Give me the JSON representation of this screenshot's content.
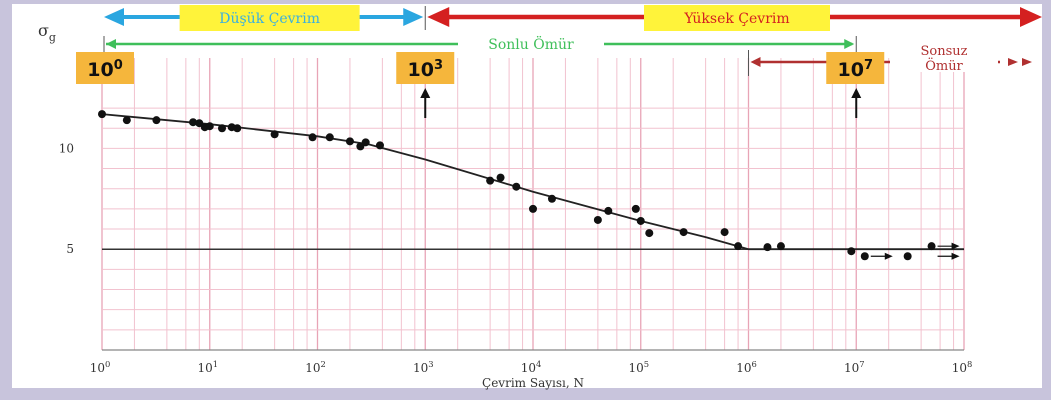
{
  "chart_data": {
    "type": "scatter",
    "xscale": "log",
    "xlim": [
      1,
      100000000
    ],
    "ylim": [
      0,
      12.5
    ],
    "xlabel": "Çevrim Sayısı, N",
    "ylabel": "σg",
    "x_ticks": [
      {
        "base": "10",
        "exp": "0"
      },
      {
        "base": "10",
        "exp": "1"
      },
      {
        "base": "10",
        "exp": "2"
      },
      {
        "base": "10",
        "exp": "3"
      },
      {
        "base": "10",
        "exp": "4"
      },
      {
        "base": "10",
        "exp": "5"
      },
      {
        "base": "10",
        "exp": "6"
      },
      {
        "base": "10",
        "exp": "7"
      },
      {
        "base": "10",
        "exp": "8"
      }
    ],
    "y_ticks": [
      {
        "value": 10,
        "label": "10"
      },
      {
        "value": 5,
        "label": "5"
      }
    ],
    "grid": true,
    "points": [
      {
        "x": 1,
        "y": 11.7
      },
      {
        "x": 1.7,
        "y": 11.4
      },
      {
        "x": 3.2,
        "y": 11.4
      },
      {
        "x": 7,
        "y": 11.3
      },
      {
        "x": 8,
        "y": 11.25
      },
      {
        "x": 9,
        "y": 11.05
      },
      {
        "x": 10,
        "y": 11.1
      },
      {
        "x": 13,
        "y": 11.0
      },
      {
        "x": 16,
        "y": 11.05
      },
      {
        "x": 18,
        "y": 11.0
      },
      {
        "x": 40,
        "y": 10.7
      },
      {
        "x": 90,
        "y": 10.55
      },
      {
        "x": 130,
        "y": 10.55
      },
      {
        "x": 200,
        "y": 10.35
      },
      {
        "x": 250,
        "y": 10.1
      },
      {
        "x": 280,
        "y": 10.3
      },
      {
        "x": 380,
        "y": 10.15
      },
      {
        "x": 4000,
        "y": 8.4
      },
      {
        "x": 5000,
        "y": 8.55
      },
      {
        "x": 7000,
        "y": 8.1
      },
      {
        "x": 10000,
        "y": 7.0
      },
      {
        "x": 15000,
        "y": 7.5
      },
      {
        "x": 40000,
        "y": 6.45
      },
      {
        "x": 50000,
        "y": 6.9
      },
      {
        "x": 90000,
        "y": 7.0
      },
      {
        "x": 100000,
        "y": 6.4
      },
      {
        "x": 120000,
        "y": 5.8
      },
      {
        "x": 250000,
        "y": 5.85
      },
      {
        "x": 600000,
        "y": 5.85
      },
      {
        "x": 800000,
        "y": 5.15
      },
      {
        "x": 1500000,
        "y": 5.1
      },
      {
        "x": 2000000,
        "y": 5.15
      },
      {
        "x": 9000000,
        "y": 4.9
      },
      {
        "x": 12000000,
        "y": 4.65
      },
      {
        "x": 30000000,
        "y": 4.65
      },
      {
        "x": 50000000,
        "y": 5.15
      }
    ],
    "runouts": [
      {
        "x": 12000000,
        "y": 4.65
      },
      {
        "x": 50000000,
        "y": 5.15
      },
      {
        "x": 50000000,
        "y": 4.65
      }
    ],
    "curve": [
      {
        "x": 1,
        "y": 11.7
      },
      {
        "x": 10,
        "y": 11.2
      },
      {
        "x": 100,
        "y": 10.6
      },
      {
        "x": 300,
        "y": 10.2
      },
      {
        "x": 1000,
        "y": 9.45
      },
      {
        "x": 10000,
        "y": 7.85
      },
      {
        "x": 100000,
        "y": 6.4
      },
      {
        "x": 400000,
        "y": 5.6
      },
      {
        "x": 1000000,
        "y": 5.0
      },
      {
        "x": 100000000,
        "y": 5.0
      }
    ],
    "regions": {
      "low_cycle": {
        "label": "Düşük Çevrim",
        "from": 1,
        "to": 1000,
        "color": "#2aa6e0"
      },
      "high_cycle": {
        "label": "Yüksek Çevrim",
        "from": 1000,
        "to": 100000000,
        "color": "#d42020"
      },
      "finite_life": {
        "label": "Sonlu Ömür",
        "from": 1,
        "to": 10000000,
        "color": "#3fbf5a"
      },
      "infinite_life": {
        "label_line1": "Sonsuz",
        "label_line2": "Ömür",
        "from": 1000000,
        "to": 100000000,
        "color": "#b03030"
      }
    },
    "markers": [
      {
        "x": 1,
        "base": "10",
        "exp": "0",
        "arrow": false
      },
      {
        "x": 1000,
        "base": "10",
        "exp": "3",
        "arrow": true
      },
      {
        "x": 10000000,
        "base": "10",
        "exp": "7",
        "arrow": true
      }
    ]
  }
}
